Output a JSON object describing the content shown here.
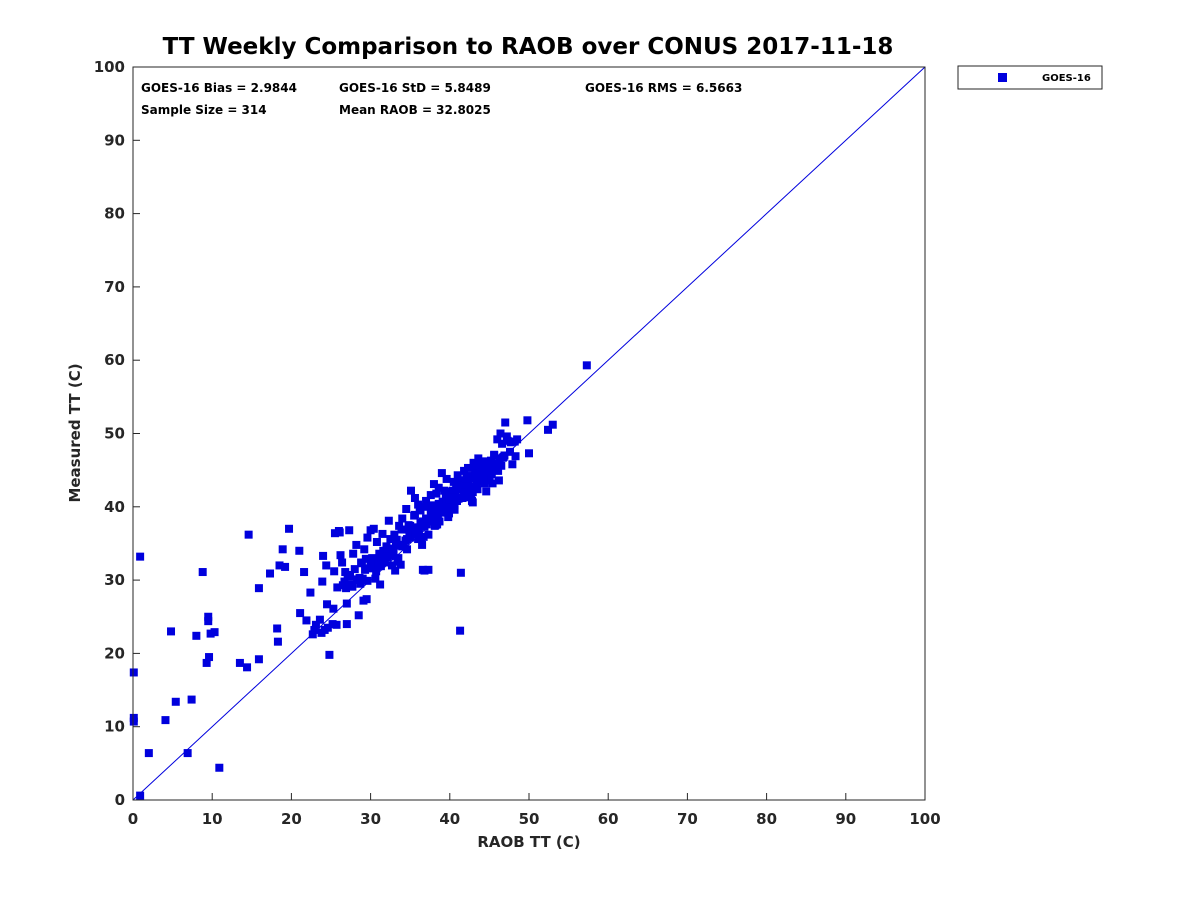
{
  "chart_data": {
    "type": "scatter",
    "title": "TT Weekly Comparison to RAOB over CONUS 2017-11-18",
    "xlabel": "RAOB TT (C)",
    "ylabel": "Measured TT (C)",
    "xlim": [
      0,
      100
    ],
    "ylim": [
      0,
      100
    ],
    "xticks": [
      "0",
      "10",
      "20",
      "30",
      "40",
      "50",
      "60",
      "70",
      "80",
      "90",
      "100"
    ],
    "yticks": [
      "0",
      "10",
      "20",
      "30",
      "40",
      "50",
      "60",
      "70",
      "80",
      "90",
      "100"
    ],
    "grid": false,
    "legend_position": "outside-top-right",
    "colors": {
      "series": "#0000dd",
      "reference_line": "#0000dd",
      "axis": "#262626"
    },
    "stats": {
      "bias": "GOES-16 Bias = 2.9844",
      "std": "GOES-16 StD = 5.8489",
      "rms": "GOES-16 RMS = 6.5663",
      "sample_size": "Sample Size = 314",
      "mean_raob": "Mean RAOB = 32.8025"
    },
    "reference_line": {
      "from": [
        0,
        0
      ],
      "to": [
        100,
        100
      ]
    },
    "series": [
      {
        "name": "GOES-16",
        "marker": "square",
        "x": [
          0.1,
          0.1,
          0.1,
          0.9,
          0.9,
          2.0,
          4.1,
          4.8,
          5.4,
          6.9,
          7.4,
          8.0,
          8.8,
          9.3,
          9.5,
          9.5,
          9.6,
          9.8,
          10.3,
          10.9,
          13.5,
          14.4,
          14.6,
          15.9,
          15.9,
          17.3,
          18.2,
          18.3,
          18.5,
          18.9,
          19.2,
          19.7,
          21.0,
          21.1,
          21.6,
          21.9,
          22.4,
          22.9,
          23.1,
          23.6,
          23.8,
          23.9,
          24.0,
          24.2,
          24.4,
          24.5,
          24.8,
          25.2,
          25.4,
          25.5,
          25.7,
          25.8,
          26.0,
          26.2,
          26.4,
          26.5,
          26.8,
          27.0,
          27.0,
          27.1,
          27.3,
          27.5,
          27.8,
          28.0,
          28.2,
          28.3,
          28.5,
          28.7,
          28.8,
          29.0,
          29.1,
          29.2,
          29.4,
          29.5,
          29.6,
          29.8,
          30.0,
          30.2,
          30.4,
          30.5,
          30.6,
          30.8,
          31.0,
          31.1,
          31.2,
          31.3,
          31.5,
          31.6,
          31.8,
          32.0,
          32.1,
          32.3,
          32.5,
          32.7,
          32.8,
          33.0,
          33.1,
          33.3,
          33.5,
          33.6,
          33.8,
          34.0,
          34.1,
          34.3,
          34.5,
          34.6,
          34.8,
          35.0,
          35.1,
          35.3,
          35.5,
          35.6,
          35.8,
          36.0,
          36.1,
          36.3,
          36.5,
          36.6,
          36.8,
          37.0,
          37.1,
          37.3,
          37.5,
          37.6,
          37.8,
          38.0,
          38.1,
          38.3,
          38.5,
          38.6,
          38.8,
          39.0,
          39.1,
          39.3,
          39.5,
          39.6,
          39.8,
          40.0,
          40.1,
          40.3,
          40.5,
          40.6,
          40.8,
          41.0,
          41.1,
          41.3,
          41.5,
          41.6,
          41.8,
          42.0,
          42.1,
          42.3,
          42.5,
          42.6,
          42.8,
          43.0,
          43.1,
          43.3,
          43.5,
          43.6,
          43.8,
          44.0,
          44.1,
          44.3,
          44.5,
          44.6,
          44.8,
          45.0,
          45.2,
          45.4,
          45.6,
          45.8,
          46.0,
          46.2,
          46.4,
          46.6,
          46.8,
          47.0,
          47.3,
          47.6,
          47.9,
          48.2,
          48.5,
          49.8,
          50.0,
          52.4,
          53.0,
          57.3,
          41.3,
          41.4,
          36.6,
          37.3,
          26.1,
          29.6,
          34.7,
          39.2,
          40.9,
          42.7,
          43.9,
          35.6,
          36.9,
          38.4,
          39.9,
          41.7,
          42.9,
          44.7,
          33.9,
          31.7,
          32.9,
          34.4,
          37.7,
          40.4,
          43.3,
          45.9,
          46.7,
          38.9,
          36.2,
          39.6,
          42.4,
          44.2,
          37.4,
          40.7,
          41.9,
          43.7,
          30.9,
          28.9,
          27.4,
          26.7,
          31.4,
          33.4,
          35.2,
          36.4,
          38.2,
          39.4,
          40.2,
          42.2,
          44.4,
          45.3,
          46.3,
          47.7,
          34.9,
          37.9,
          41.4,
          43.4,
          45.7,
          32.4,
          35.4,
          38.7,
          41.2,
          39.7,
          36.7,
          42.6,
          44.9,
          40.6,
          37.2,
          35.7,
          33.2,
          30.3,
          28.4,
          26.9,
          25.3,
          24.6,
          22.7,
          31.9,
          34.2,
          36.8,
          39.2,
          41.6,
          43.2,
          45.1,
          46.9,
          38.3,
          40.9,
          42.7,
          44.6,
          37.6,
          35.9,
          33.7,
          31.3,
          29.3,
          27.7,
          40.4,
          42.9,
          44.3,
          46.1,
          48.3,
          39.9,
          41.1,
          43.6,
          45.5,
          36.3,
          38.6,
          40.3,
          34.6,
          32.6,
          30.7,
          28.6,
          42.1,
          43.8,
          41.8,
          39.5,
          37.0,
          35.0,
          46.5,
          44.0,
          42.4,
          40.0,
          38.0,
          36.0,
          34.0,
          32.0,
          30.0,
          47.2,
          45.6
        ],
        "y": [
          17.4,
          11.2,
          10.7,
          33.2,
          0.6,
          6.4,
          10.9,
          23.0,
          13.4,
          6.4,
          13.7,
          22.4,
          31.1,
          18.7,
          24.4,
          25.0,
          19.5,
          22.7,
          22.9,
          4.4,
          18.7,
          18.1,
          36.2,
          28.9,
          19.2,
          30.9,
          23.4,
          21.6,
          32.0,
          34.2,
          31.8,
          37.0,
          34.0,
          25.5,
          31.1,
          24.5,
          28.3,
          23.2,
          23.9,
          24.6,
          22.8,
          29.8,
          33.3,
          23.2,
          32.0,
          26.7,
          19.8,
          24.0,
          31.2,
          36.4,
          23.9,
          29.0,
          36.7,
          33.4,
          32.4,
          29.3,
          31.1,
          26.8,
          24.0,
          30.7,
          36.8,
          29.4,
          33.6,
          31.5,
          34.8,
          30.0,
          25.2,
          29.5,
          32.4,
          30.2,
          27.2,
          34.2,
          32.9,
          27.4,
          35.8,
          31.6,
          36.8,
          33.0,
          37.0,
          32.6,
          30.2,
          35.2,
          31.9,
          33.6,
          29.4,
          32.8,
          36.3,
          34.0,
          32.4,
          34.6,
          33.1,
          38.1,
          35.6,
          32.0,
          34.3,
          36.2,
          31.3,
          35.5,
          33.0,
          37.4,
          32.1,
          38.4,
          34.8,
          36.9,
          39.7,
          34.2,
          37.5,
          35.8,
          42.2,
          36.4,
          38.8,
          41.2,
          37.1,
          40.3,
          36.6,
          39.5,
          34.8,
          38.0,
          31.3,
          40.8,
          37.6,
          36.2,
          40.1,
          41.6,
          39.2,
          43.1,
          37.4,
          41.8,
          38.5,
          42.6,
          39.8,
          44.6,
          40.7,
          42.2,
          41.3,
          43.8,
          38.6,
          40.7,
          42.1,
          41.6,
          43.4,
          40.2,
          42.8,
          44.3,
          41.1,
          43.6,
          42.5,
          41.2,
          44.9,
          43.0,
          41.6,
          45.3,
          42.7,
          44.2,
          40.8,
          46.0,
          43.9,
          45.5,
          42.4,
          46.6,
          44.2,
          45.8,
          43.5,
          46.2,
          44.8,
          42.1,
          45.4,
          44.0,
          46.3,
          43.2,
          47.0,
          45.6,
          49.2,
          43.6,
          50.0,
          48.6,
          46.8,
          51.5,
          49.0,
          47.5,
          45.8,
          48.9,
          49.2,
          51.8,
          47.3,
          50.5,
          51.2,
          59.3,
          23.1,
          31.0,
          31.4,
          31.4,
          36.5,
          29.9,
          36.9,
          39.2,
          40.8,
          42.4,
          43.8,
          38.9,
          40.0,
          37.6,
          39.1,
          42.3,
          40.6,
          43.6,
          36.9,
          32.7,
          33.7,
          35.4,
          38.6,
          42.2,
          44.5,
          45.4,
          46.7,
          39.6,
          39.7,
          40.2,
          43.2,
          45.1,
          38.4,
          41.4,
          42.7,
          44.6,
          32.6,
          32.3,
          30.5,
          29.8,
          32.3,
          32.5,
          36.4,
          35.7,
          37.5,
          40.5,
          41.8,
          41.3,
          43.2,
          44.4,
          46.6,
          48.8,
          36.1,
          38.2,
          43.6,
          43.3,
          45.9,
          33.6,
          36.9,
          38.0,
          42.4,
          39.9,
          35.9,
          42.6,
          44.9,
          39.6,
          38.0,
          36.2,
          34.8,
          31.8,
          30.1,
          28.9,
          26.1,
          23.5,
          22.6,
          33.5,
          34.8,
          37.3,
          40.4,
          42.9,
          44.5,
          45.8,
          47.0,
          39.4,
          40.8,
          41.7,
          45.2,
          39.5,
          37.2,
          34.7,
          31.9,
          31.4,
          29.1,
          41.3,
          42.0,
          43.8,
          44.9,
          46.9,
          39.2,
          42.9,
          44.1,
          45.2,
          37.8,
          40.4,
          41.0,
          35.6,
          33.3,
          31.2,
          30.3,
          43.9,
          44.0,
          41.9,
          39.9,
          38.4,
          37.4,
          45.6,
          44.7,
          42.0,
          41.0,
          40.2,
          35.6,
          34.6,
          33.2,
          32.3,
          49.6,
          47.1
        ]
      }
    ]
  }
}
